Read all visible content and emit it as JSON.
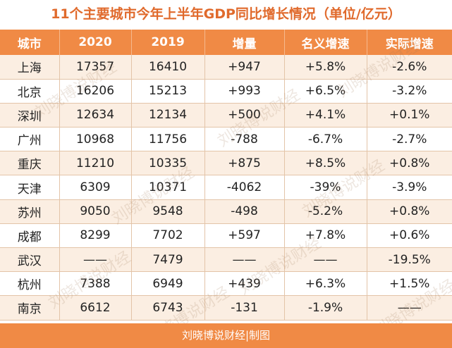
{
  "title": "11个主要城市今年上半年GDP同比增长情况（单位/亿元）",
  "headers": [
    "城市",
    "2020",
    "2019",
    "增量",
    "名义增速",
    "实际增速"
  ],
  "rows": [
    [
      "上海",
      "17357",
      "16410",
      "+947",
      "+5.8%",
      "-2.6%"
    ],
    [
      "北京",
      "16206",
      "15213",
      "+993",
      "+6.5%",
      "-3.2%"
    ],
    [
      "深圳",
      "12634",
      "12134",
      "+500",
      "+4.1%",
      "+0.1%"
    ],
    [
      "广州",
      "10968",
      "11756",
      "-788",
      "-6.7%",
      "-2.7%"
    ],
    [
      "重庆",
      "11210",
      "10335",
      "+875",
      "+8.5%",
      "+0.8%"
    ],
    [
      "天津",
      "6309",
      "10371",
      "-4062",
      "-39%",
      "-3.9%"
    ],
    [
      "苏州",
      "9050",
      "9548",
      "-498",
      "-5.2%",
      "+0.8%"
    ],
    [
      "成都",
      "8299",
      "7702",
      "+597",
      "+7.8%",
      "+0.6%"
    ],
    [
      "武汉",
      "——",
      "7479",
      "——",
      "——",
      "-19.5%"
    ],
    [
      "杭州",
      "7388",
      "6949",
      "+439",
      "+6.3%",
      "+1.5%"
    ],
    [
      "南京",
      "6612",
      "6743",
      "-131",
      "-1.9%",
      "——"
    ]
  ],
  "footer": "刘晓博说财经|制图",
  "watermark": "刘晓博说财经",
  "colors": {
    "accent": "#f08a45",
    "title": "#e06a2c",
    "stripe": "#fbeee2"
  }
}
